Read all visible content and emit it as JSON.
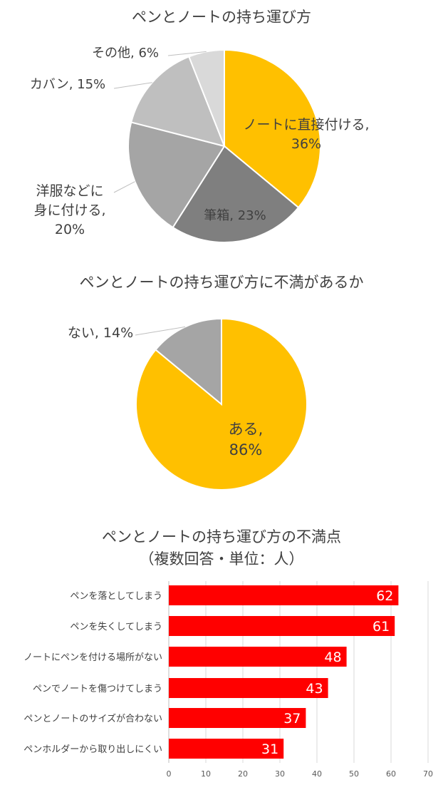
{
  "chart_data": [
    {
      "type": "pie",
      "title": "ペンとノートの持ち運び方",
      "slices": [
        {
          "label": "ノートに直接付ける",
          "value": 36,
          "display": [
            "ノートに直接付ける,",
            "36%"
          ],
          "color": "#FFC000"
        },
        {
          "label": "筆箱",
          "value": 23,
          "display": [
            "筆箱, 23%"
          ],
          "color": "#7F7F7F"
        },
        {
          "label": "洋服などに身に付ける",
          "value": 20,
          "display": [
            "洋服などに",
            "身に付ける,",
            "20%"
          ],
          "color": "#A5A5A5"
        },
        {
          "label": "カバン",
          "value": 15,
          "display": [
            "カバン, 15%"
          ],
          "color": "#BFBFBF"
        },
        {
          "label": "その他",
          "value": 6,
          "display": [
            "その他, 6%"
          ],
          "color": "#D9D9D9"
        }
      ]
    },
    {
      "type": "pie",
      "title": "ペンとノートの持ち運び方に不満があるか",
      "slices": [
        {
          "label": "ある",
          "value": 86,
          "display": [
            "ある,",
            "86%"
          ],
          "color": "#FFC000"
        },
        {
          "label": "ない",
          "value": 14,
          "display": [
            "ない, 14%"
          ],
          "color": "#A5A5A5"
        }
      ]
    },
    {
      "type": "bar",
      "orientation": "horizontal",
      "title": "ペンとノートの持ち運び方の不満点",
      "subtitle": "（複数回答・単位：人）",
      "categories": [
        "ペンを落としてしまう",
        "ペンを失くしてしまう",
        "ノートにペンを付ける場所がない",
        "ペンでノートを傷つけてしまう",
        "ペンとノートのサイズが合わない",
        "ペンホルダーから取り出しにくい"
      ],
      "values": [
        62,
        61,
        48,
        43,
        37,
        31
      ],
      "xlim": [
        0,
        70
      ],
      "xticks": [
        "0",
        "10",
        "20",
        "30",
        "40",
        "50",
        "60",
        "70"
      ],
      "grid": true,
      "bar_color": "#FF0000"
    }
  ]
}
